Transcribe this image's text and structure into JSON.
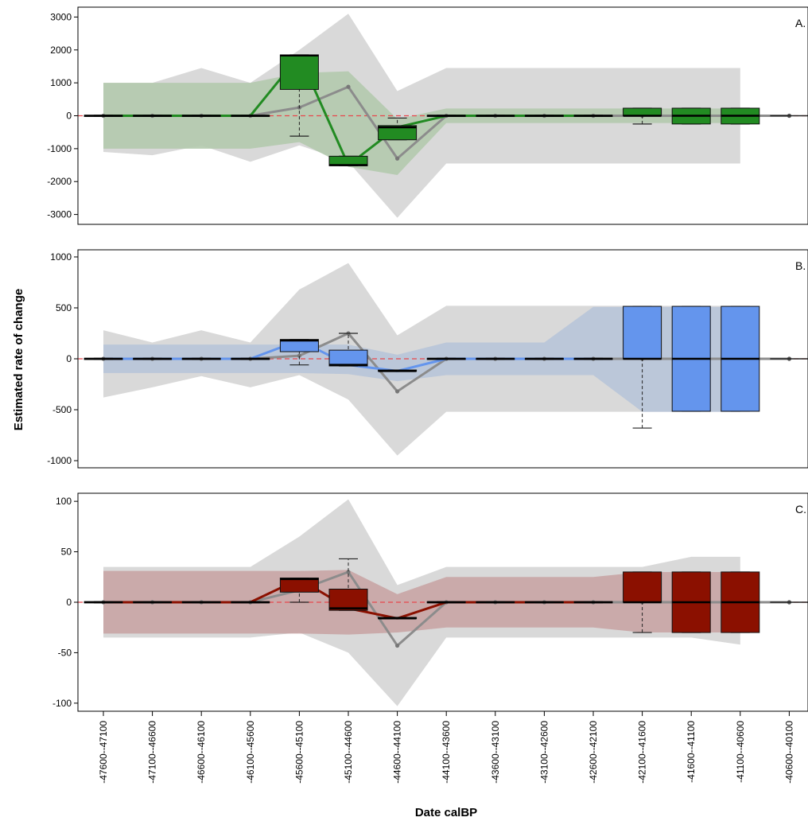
{
  "axis": {
    "ylabel": "Estimated rate of change",
    "xlabel": "Date calBP"
  },
  "colors": {
    "envelope": "#d9d9d9",
    "median_line": "#8c8c8c",
    "zero_line": "#e8474c"
  },
  "chart_data": [
    {
      "type": "box",
      "panel_label": "A.",
      "color": "#228b22",
      "band_color": "#b2c9ad",
      "categories": [
        "-47600--47100",
        "-47100--46600",
        "-46600--46100",
        "-46100--45600",
        "-45600--45100",
        "-45100--44600",
        "-44600--44100",
        "-44100--43600",
        "-43600--43100",
        "-43100--42600",
        "-42600--42100",
        "-42100--41600",
        "-41600--41100",
        "-41100--40600",
        "-40600--40100"
      ],
      "ylim": [
        -3300,
        3300
      ],
      "yticks": [
        -3000,
        -2000,
        -1000,
        0,
        1000,
        2000,
        3000
      ],
      "boxes": [
        {
          "q1": -15,
          "median": 0,
          "q3": 15,
          "whisker_low": -15,
          "whisker_high": 15
        },
        {
          "q1": -15,
          "median": 0,
          "q3": 15,
          "whisker_low": -15,
          "whisker_high": 15
        },
        {
          "q1": -15,
          "median": 0,
          "q3": 15,
          "whisker_low": -15,
          "whisker_high": 15
        },
        {
          "q1": -15,
          "median": 0,
          "q3": 15,
          "whisker_low": -15,
          "whisker_high": 15
        },
        {
          "q1": 800,
          "median": 1830,
          "q3": 1850,
          "whisker_low": -620,
          "whisker_high": 1850
        },
        {
          "q1": -1520,
          "median": -1500,
          "q3": -1230,
          "whisker_low": -1520,
          "whisker_high": -1230
        },
        {
          "q1": -730,
          "median": -350,
          "q3": -300,
          "whisker_low": -730,
          "whisker_high": -70
        },
        {
          "q1": -15,
          "median": 0,
          "q3": 15,
          "whisker_low": -15,
          "whisker_high": 15
        },
        {
          "q1": -15,
          "median": 0,
          "q3": 15,
          "whisker_low": -15,
          "whisker_high": 15
        },
        {
          "q1": -15,
          "median": 0,
          "q3": 15,
          "whisker_low": -15,
          "whisker_high": 15
        },
        {
          "q1": -15,
          "median": 0,
          "q3": 15,
          "whisker_low": -15,
          "whisker_high": 15
        },
        {
          "q1": 0,
          "median": 0,
          "q3": 230,
          "whisker_low": -250,
          "whisker_high": 230
        },
        {
          "q1": -250,
          "median": 0,
          "q3": 230,
          "whisker_low": -250,
          "whisker_high": 230
        },
        {
          "q1": -250,
          "median": 0,
          "q3": 230,
          "whisker_low": -250,
          "whisker_high": 230
        },
        null
      ],
      "line_values": [
        0,
        0,
        0,
        0,
        1830,
        -1500,
        -350,
        0,
        0,
        0,
        0,
        null,
        null,
        null,
        0
      ],
      "median_line": [
        0,
        0,
        0,
        0,
        250,
        880,
        -1300,
        0,
        0,
        0,
        0,
        0,
        0,
        0,
        0
      ],
      "envelope_upper": [
        1000,
        1000,
        1450,
        1000,
        2000,
        3100,
        750,
        1450,
        1450,
        1450,
        1450,
        1450,
        1450,
        1450,
        null
      ],
      "envelope_lower": [
        -1100,
        -1200,
        -900,
        -1400,
        -900,
        -1400,
        -3100,
        -1450,
        -1450,
        -1450,
        -1450,
        -1450,
        -1450,
        -1450,
        null
      ],
      "band_upper": [
        1000,
        1000,
        1000,
        1000,
        1300,
        1350,
        -100,
        220,
        220,
        220,
        220,
        220,
        220,
        220,
        null
      ],
      "band_lower": [
        -1000,
        -1000,
        -1000,
        -1000,
        -800,
        -1550,
        -1800,
        -220,
        -220,
        -220,
        -220,
        -220,
        -220,
        -220,
        null
      ]
    },
    {
      "type": "box",
      "panel_label": "B.",
      "color": "#6495ed",
      "band_color": "#b7c4d8",
      "categories": [
        "-47600--47100",
        "-47100--46600",
        "-46600--46100",
        "-46100--45600",
        "-45600--45100",
        "-45100--44600",
        "-44600--44100",
        "-44100--43600",
        "-43600--43100",
        "-43100--42600",
        "-42600--42100",
        "-42100--41600",
        "-41600--41100",
        "-41100--40600",
        "-40600--40100"
      ],
      "ylim": [
        -1070,
        1070
      ],
      "yticks": [
        -1000,
        -500,
        0,
        500,
        1000
      ],
      "boxes": [
        {
          "q1": -5,
          "median": 0,
          "q3": 5,
          "whisker_low": -5,
          "whisker_high": 5
        },
        {
          "q1": -5,
          "median": 0,
          "q3": 5,
          "whisker_low": -5,
          "whisker_high": 5
        },
        {
          "q1": -5,
          "median": 0,
          "q3": 5,
          "whisker_low": -5,
          "whisker_high": 5
        },
        {
          "q1": -5,
          "median": 0,
          "q3": 5,
          "whisker_low": -5,
          "whisker_high": 5
        },
        {
          "q1": 70,
          "median": 180,
          "q3": 190,
          "whisker_low": -60,
          "whisker_high": 190
        },
        {
          "q1": -70,
          "median": -60,
          "q3": 85,
          "whisker_low": -70,
          "whisker_high": 250
        },
        {
          "q1": -120,
          "median": -120,
          "q3": -110,
          "whisker_low": -120,
          "whisker_high": -110
        },
        {
          "q1": -5,
          "median": 0,
          "q3": 5,
          "whisker_low": -5,
          "whisker_high": 5
        },
        {
          "q1": -5,
          "median": 0,
          "q3": 5,
          "whisker_low": -5,
          "whisker_high": 5
        },
        {
          "q1": -5,
          "median": 0,
          "q3": 5,
          "whisker_low": -5,
          "whisker_high": 5
        },
        {
          "q1": -5,
          "median": 0,
          "q3": 5,
          "whisker_low": -5,
          "whisker_high": 5
        },
        {
          "q1": 0,
          "median": 0,
          "q3": 515,
          "whisker_low": -680,
          "whisker_high": 515
        },
        {
          "q1": -515,
          "median": 0,
          "q3": 515,
          "whisker_low": -515,
          "whisker_high": 515
        },
        {
          "q1": -515,
          "median": 0,
          "q3": 515,
          "whisker_low": -515,
          "whisker_high": 515
        },
        null
      ],
      "line_values": [
        0,
        0,
        0,
        0,
        180,
        -60,
        -120,
        0,
        0,
        0,
        0,
        null,
        null,
        null,
        0
      ],
      "median_line": [
        0,
        0,
        0,
        0,
        30,
        250,
        -320,
        0,
        0,
        0,
        0,
        0,
        0,
        0,
        0
      ],
      "envelope_upper": [
        280,
        160,
        280,
        160,
        680,
        940,
        230,
        520,
        520,
        520,
        520,
        520,
        520,
        520,
        null
      ],
      "envelope_lower": [
        -380,
        -280,
        -170,
        -280,
        -160,
        -400,
        -950,
        -520,
        -520,
        -520,
        -520,
        -520,
        -520,
        -520,
        null
      ],
      "band_upper": [
        140,
        140,
        140,
        140,
        140,
        140,
        40,
        160,
        160,
        160,
        510,
        510,
        510,
        510,
        null
      ],
      "band_lower": [
        -140,
        -140,
        -140,
        -140,
        -140,
        -150,
        -220,
        -160,
        -160,
        -160,
        -160,
        -520,
        -520,
        -520,
        null
      ]
    },
    {
      "type": "box",
      "panel_label": "C.",
      "color": "#8b1000",
      "band_color": "#c8a4a4",
      "categories": [
        "-47600--47100",
        "-47100--46600",
        "-46600--46100",
        "-46100--45600",
        "-45600--45100",
        "-45100--44600",
        "-44600--44100",
        "-44100--43600",
        "-43600--43100",
        "-43100--42600",
        "-42600--42100",
        "-42100--41600",
        "-41600--41100",
        "-41100--40600",
        "-40600--40100"
      ],
      "ylim": [
        -108,
        108
      ],
      "yticks": [
        -100,
        -50,
        0,
        50,
        100
      ],
      "boxes": [
        {
          "q1": -0.6,
          "median": 0,
          "q3": 0.6,
          "whisker_low": -0.6,
          "whisker_high": 0.6
        },
        {
          "q1": -0.6,
          "median": 0,
          "q3": 0.6,
          "whisker_low": -0.6,
          "whisker_high": 0.6
        },
        {
          "q1": -0.6,
          "median": 0,
          "q3": 0.6,
          "whisker_low": -0.6,
          "whisker_high": 0.6
        },
        {
          "q1": -0.6,
          "median": 0,
          "q3": 0.6,
          "whisker_low": -0.6,
          "whisker_high": 0.6
        },
        {
          "q1": 10,
          "median": 23,
          "q3": 24,
          "whisker_low": 0,
          "whisker_high": 24
        },
        {
          "q1": -8,
          "median": -6,
          "q3": 13,
          "whisker_low": -8,
          "whisker_high": 43
        },
        {
          "q1": -16,
          "median": -16,
          "q3": -15,
          "whisker_low": -16,
          "whisker_high": -15
        },
        {
          "q1": -0.6,
          "median": 0,
          "q3": 0.6,
          "whisker_low": -0.6,
          "whisker_high": 0.6
        },
        {
          "q1": -0.6,
          "median": 0,
          "q3": 0.6,
          "whisker_low": -0.6,
          "whisker_high": 0.6
        },
        {
          "q1": -0.6,
          "median": 0,
          "q3": 0.6,
          "whisker_low": -0.6,
          "whisker_high": 0.6
        },
        {
          "q1": -0.6,
          "median": 0,
          "q3": 0.6,
          "whisker_low": -0.6,
          "whisker_high": 0.6
        },
        {
          "q1": 0,
          "median": 0,
          "q3": 30,
          "whisker_low": -30,
          "whisker_high": 30
        },
        {
          "q1": -30,
          "median": 0,
          "q3": 30,
          "whisker_low": -30,
          "whisker_high": 30
        },
        {
          "q1": -30,
          "median": 0,
          "q3": 30,
          "whisker_low": -30,
          "whisker_high": 30
        },
        null
      ],
      "line_values": [
        0,
        0,
        0,
        0,
        23,
        -6,
        -16,
        0,
        0,
        0,
        0,
        null,
        null,
        null,
        0
      ],
      "median_line": [
        0,
        0,
        0,
        0,
        12,
        30,
        -43,
        0,
        0,
        0,
        0,
        0,
        0,
        0,
        0
      ],
      "envelope_upper": [
        35,
        35,
        35,
        35,
        65,
        102,
        17,
        35,
        35,
        35,
        35,
        35,
        45,
        45,
        null
      ],
      "envelope_lower": [
        -35,
        -35,
        -35,
        -35,
        -30,
        -50,
        -103,
        -35,
        -35,
        -35,
        -35,
        -35,
        -35,
        -42,
        null
      ],
      "band_upper": [
        31,
        31,
        31,
        31,
        31,
        32,
        8,
        25,
        25,
        25,
        25,
        30,
        30,
        30,
        null
      ],
      "band_lower": [
        -31,
        -31,
        -31,
        -31,
        -31,
        -32,
        -30,
        -25,
        -25,
        -25,
        -25,
        -30,
        -30,
        -30,
        null
      ]
    }
  ]
}
